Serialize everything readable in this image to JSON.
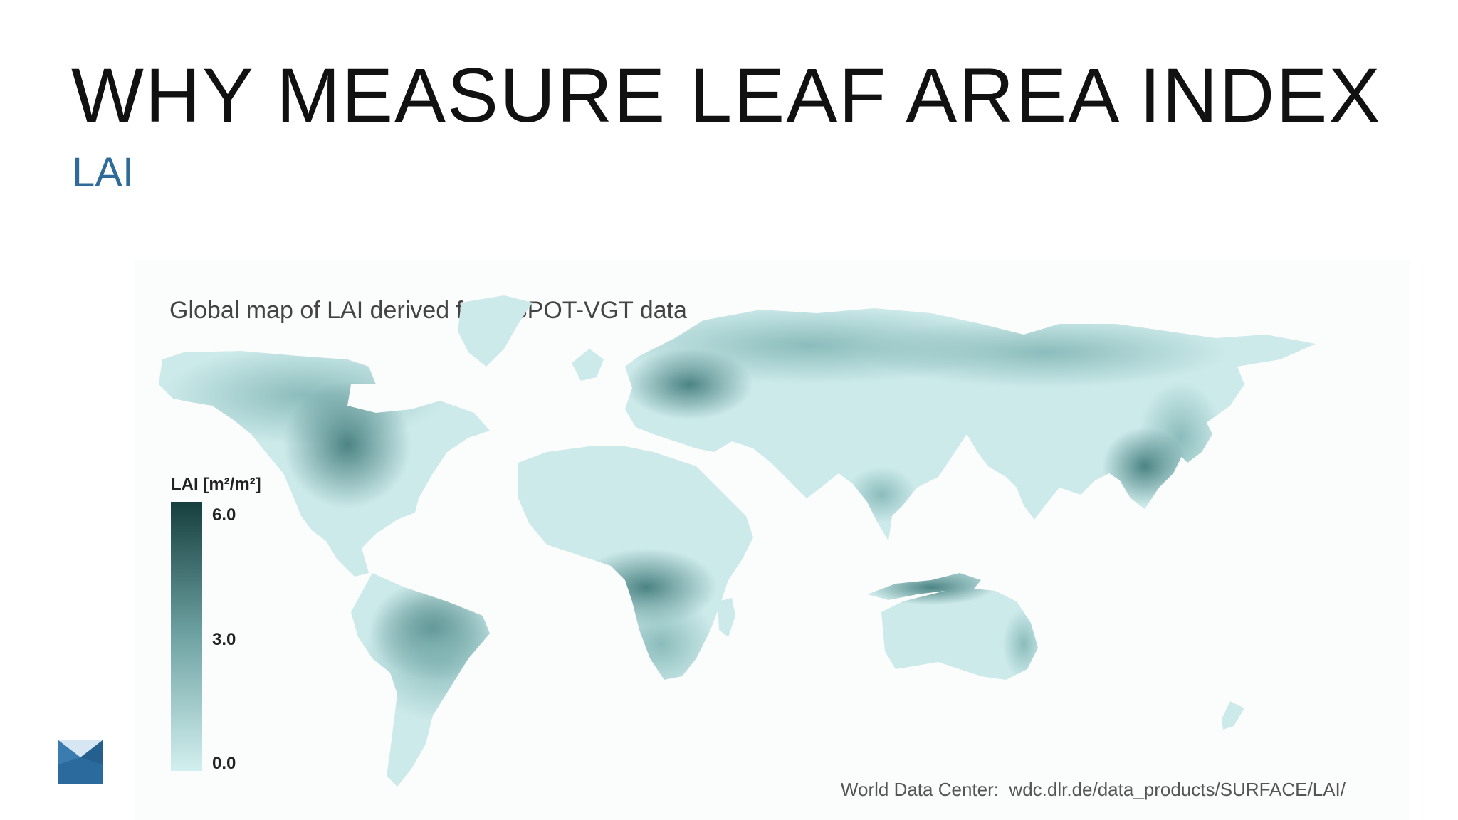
{
  "slide": {
    "title": "WHY MEASURE LEAF AREA INDEX",
    "subtitle": "LAI"
  },
  "map": {
    "title": "Global map of LAI derived from SPOT-VGT data",
    "legend": {
      "title": "LAI [m²/m²]",
      "max_label": "6.0",
      "mid_label": "3.0",
      "min_label": "0.0",
      "max_value": 6.0,
      "mid_value": 3.0,
      "min_value": 0.0,
      "color_high": "#163e3e",
      "color_low": "#d3efef"
    },
    "credit": "World Data Center:  wdc.dlr.de/data_products/SURFACE/LAI/"
  },
  "colors": {
    "title_text": "#111111",
    "subtitle_text": "#2f6b9a",
    "logo_blue": "#2b6a9c",
    "land_light": "#cdeaea",
    "land_mid": "#7fb4b3",
    "land_dark": "#3d7878"
  },
  "icons": {
    "logo": "envelope-logo-icon"
  }
}
